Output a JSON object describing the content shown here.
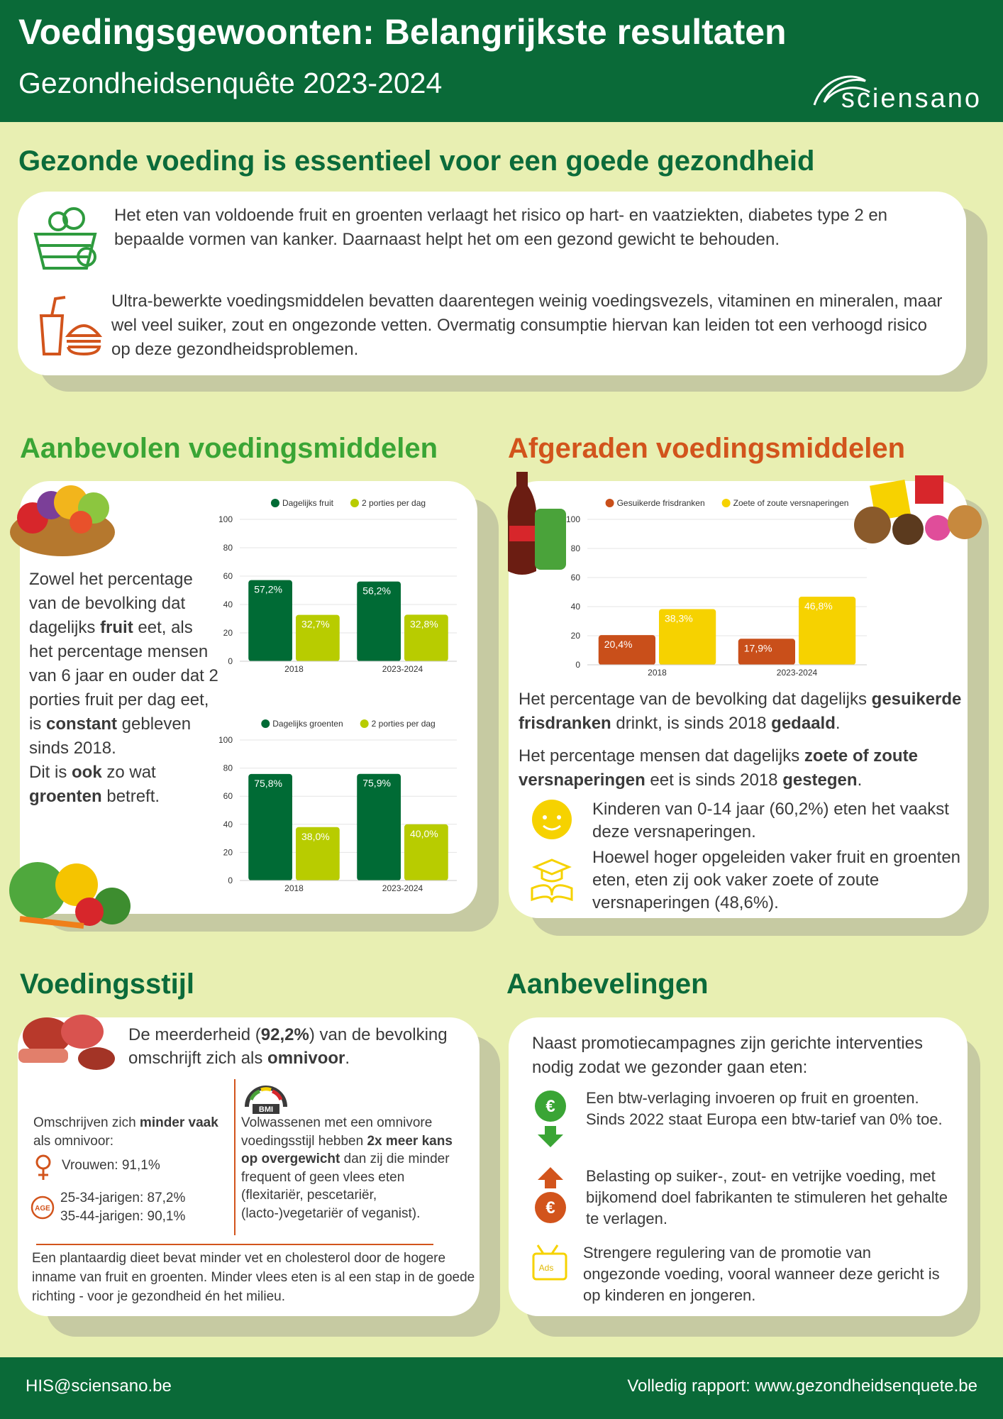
{
  "header": {
    "title": "Voedingsgewoonten: Belangrijkste resultaten",
    "subtitle": "Gezondheidsenquête 2023-2024",
    "logo": "sciensano"
  },
  "intro": {
    "heading": "Gezonde voeding is essentieel voor een goede gezondheid",
    "paragraphs": [
      "Het eten van voldoende fruit en groenten verlaagt het risico op hart- en vaatziekten, diabetes type 2 en bepaalde vormen van kanker. Daarnaast helpt het om een gezond gewicht te behouden.",
      "Ultra-bewerkte voedingsmiddelen bevatten daarentegen weinig voedingsvezels, vitaminen en mineralen, maar wel veel suiker, zout en ongezonde vetten. Overmatig consumptie hiervan kan leiden tot een verhoogd risico op deze gezondheidsproblemen."
    ]
  },
  "recommended": {
    "heading": "Aanbevolen voedingsmiddelen",
    "paragraphs": [
      [
        "Zowel het percentage van de bevolking dat dagelijks ",
        {
          "bold": "fruit"
        },
        " eet, als het percentage mensen van 6 jaar en ouder dat 2 porties fruit per dag eet, is ",
        {
          "bold": "constant"
        },
        " gebleven sinds 2018."
      ],
      [
        "Dit is ",
        {
          "bold": "ook"
        },
        " zo wat ",
        {
          "bold": "groenten"
        },
        " betreft."
      ]
    ],
    "charts": [
      {
        "type": "bar",
        "categories": [
          "2018",
          "2023-2024"
        ],
        "series": [
          {
            "name": "Dagelijks fruit",
            "color": "#006b35",
            "values": [
              57.2,
              56.2
            ],
            "value_labels": [
              "57,2%",
              "56,2%"
            ]
          },
          {
            "name": "2 porties per dag",
            "color": "#b8cc00",
            "values": [
              32.7,
              32.8
            ],
            "value_labels": [
              "32,7%",
              "32,8%"
            ]
          }
        ],
        "ylim": [
          0,
          100
        ],
        "yticks": [
          0,
          20,
          40,
          60,
          80,
          100
        ],
        "grid": true,
        "legend": "top"
      },
      {
        "type": "bar",
        "categories": [
          "2018",
          "2023-2024"
        ],
        "series": [
          {
            "name": "Dagelijks groenten",
            "color": "#006b35",
            "values": [
              75.8,
              75.9
            ],
            "value_labels": [
              "75,8%",
              "75,9%"
            ]
          },
          {
            "name": "2 porties per dag",
            "color": "#b8cc00",
            "values": [
              38.0,
              40.0
            ],
            "value_labels": [
              "38,0%",
              "40,0%"
            ]
          }
        ],
        "ylim": [
          0,
          100
        ],
        "yticks": [
          0,
          20,
          40,
          60,
          80,
          100
        ],
        "grid": true,
        "legend": "top"
      }
    ]
  },
  "discouraged": {
    "heading": "Afgeraden voedingsmiddelen",
    "chart": {
      "type": "bar",
      "categories": [
        "2018",
        "2023-2024"
      ],
      "series": [
        {
          "name": "Gesuikerde frisdranken",
          "color": "#c94f1a",
          "values": [
            20.4,
            17.9
          ],
          "value_labels": [
            "20,4%",
            "17,9%"
          ]
        },
        {
          "name": "Zoete of zoute versnaperingen",
          "color": "#f6d200",
          "values": [
            38.3,
            46.8
          ],
          "value_labels": [
            "38,3%",
            "46,8%"
          ]
        }
      ],
      "ylim": [
        0,
        100
      ],
      "yticks": [
        0,
        20,
        40,
        60,
        80,
        100
      ],
      "grid": true,
      "legend": "top"
    },
    "paragraphs": [
      [
        "Het percentage van de bevolking dat dagelijks ",
        {
          "bold": "gesuikerde frisdranken"
        },
        " drinkt, is sinds 2018 ",
        {
          "bold": "gedaald"
        },
        "."
      ],
      [
        "Het percentage mensen dat dagelijks ",
        {
          "bold": "zoete of zoute versnaperingen"
        },
        " eet is sinds 2018 ",
        {
          "bold": "gestegen"
        },
        "."
      ]
    ],
    "bullets": [
      "Kinderen van 0-14 jaar (60,2%) eten het vaakst deze versnaperingen.",
      "Hoewel hoger opgeleiden vaker fruit en groenten eten, eten zij ook vaker zoete of zoute versnaperingen (48,6%)."
    ]
  },
  "style": {
    "heading": "Voedingsstijl",
    "lead": [
      "De meerderheid (",
      {
        "bold": "92,2%"
      },
      ") van de bevolking omschrijft zich als ",
      {
        "bold": "omnivoor"
      },
      "."
    ],
    "less_often": {
      "intro": [
        "Omschrijven zich ",
        {
          "bold": "minder vaak"
        },
        " als omnivoor:"
      ],
      "women": "Vrouwen: 91,1%",
      "age_icon": "AGE",
      "ages": [
        "25-34-jarigen: 87,2%",
        "35-44-jarigen: 90,1%"
      ]
    },
    "bmi": {
      "icon": "BMI",
      "text": [
        "Volwassenen met een omnivore voedingsstijl hebben ",
        {
          "bold": "2x meer kans op overgewicht"
        },
        " dan zij die minder frequent of geen vlees eten (flexitariër, pescetariër, (lacto-)vegetariër of veganist)."
      ]
    },
    "closing": "Een plantaardig dieet bevat minder vet en cholesterol door de hogere inname van fruit en groenten. Minder vlees eten is al een stap in de goede richting - voor je gezondheid én het milieu."
  },
  "recommendations": {
    "heading": "Aanbevelingen",
    "intro": "Naast promotiecampagnes zijn gerichte interventies nodig zodat we gezonder gaan eten:",
    "currency_icon": "€",
    "ads_icon": "Ads",
    "items": [
      "Een btw-verlaging invoeren op fruit en groenten. Sinds 2022 staat Europa een btw-tarief van 0% toe.",
      "Belasting op suiker-, zout- en vetrijke voeding, met bijkomend doel fabrikanten te stimuleren het gehalte te verlagen.",
      "Strengere regulering van de promotie van ongezonde voeding, vooral wanneer deze gericht is op kinderen en jongeren."
    ]
  },
  "footer": {
    "email": "HIS@sciensano.be",
    "report": "Volledig rapport: www.gezondheidsenquete.be"
  }
}
